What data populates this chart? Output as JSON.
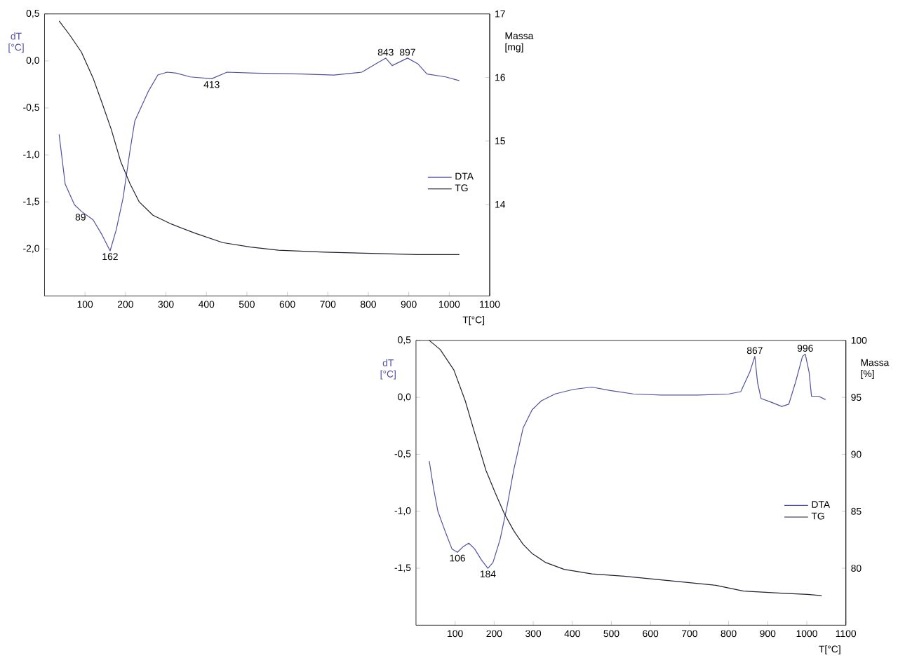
{
  "chart_data": [
    {
      "type": "line",
      "xlabel": "T[°C]",
      "ylabel": "dT [°C]",
      "y2label": "Massa [mg]",
      "legend": "right",
      "xlim": [
        0,
        1100
      ],
      "xticks": [
        100,
        200,
        300,
        400,
        500,
        600,
        700,
        800,
        900,
        1000,
        1100
      ],
      "ylim": [
        -2.5,
        0.5
      ],
      "yticks": [
        {
          "value": 0.5,
          "label": "0,5"
        },
        {
          "value": 0.0,
          "label": "0,0"
        },
        {
          "value": -0.5,
          "label": "-0,5"
        },
        {
          "value": -1.0,
          "label": "-1,0"
        },
        {
          "value": -1.5,
          "label": "-1,5"
        },
        {
          "value": -2.0,
          "label": "-2,0"
        }
      ],
      "y2lim": [
        12.56,
        17
      ],
      "y2ticks": [
        14,
        15,
        16,
        17
      ],
      "series": [
        {
          "name": "DTA",
          "color": "#5050a0",
          "x": [
            36,
            51,
            74,
            91,
            120,
            142,
            162,
            177,
            194,
            211,
            223,
            240,
            257,
            280,
            303,
            326,
            360,
            413,
            451,
            520,
            635,
            715,
            784,
            819,
            843,
            859,
            897,
            922,
            945,
            991,
            1025
          ],
          "values": [
            -0.78,
            -1.31,
            -1.53,
            -1.6,
            -1.69,
            -1.85,
            -2.02,
            -1.8,
            -1.46,
            -0.96,
            -0.64,
            -0.48,
            -0.32,
            -0.15,
            -0.12,
            -0.13,
            -0.17,
            -0.19,
            -0.12,
            -0.13,
            -0.14,
            -0.15,
            -0.12,
            -0.03,
            0.03,
            -0.05,
            0.03,
            -0.03,
            -0.14,
            -0.17,
            -0.21
          ]
        },
        {
          "name": "TG",
          "color": "#202030",
          "axis": "y2",
          "x": [
            36,
            62,
            91,
            120,
            142,
            165,
            188,
            211,
            234,
            268,
            314,
            371,
            440,
            509,
            578,
            692,
            807,
            922,
            1025
          ],
          "values": [
            16.89,
            16.67,
            16.4,
            15.99,
            15.6,
            15.18,
            14.68,
            14.33,
            14.04,
            13.83,
            13.69,
            13.55,
            13.4,
            13.33,
            13.28,
            13.25,
            13.23,
            13.21,
            13.21
          ]
        }
      ],
      "annotations": [
        {
          "text": "89",
          "x": 89,
          "y": -1.6
        },
        {
          "text": "162",
          "x": 162,
          "y": -2.02
        },
        {
          "text": "413",
          "x": 413,
          "y": -0.19
        },
        {
          "text": "843",
          "x": 843,
          "y": 0.03
        },
        {
          "text": "897",
          "x": 897,
          "y": 0.03
        }
      ]
    },
    {
      "type": "line",
      "xlabel": "T[°C]",
      "ylabel": "dT [°C]",
      "y2label": "Massa [%]",
      "legend": "right",
      "xlim": [
        0,
        1100
      ],
      "xticks": [
        100,
        200,
        300,
        400,
        500,
        600,
        700,
        800,
        900,
        1000,
        1100
      ],
      "ylim": [
        -2.0,
        0.5
      ],
      "yticks": [
        {
          "value": 0.5,
          "label": "0,5"
        },
        {
          "value": 0.0,
          "label": "0,0"
        },
        {
          "value": -0.5,
          "label": "-0,5"
        },
        {
          "value": -1.0,
          "label": "-1,0"
        },
        {
          "value": -1.5,
          "label": "-1,5"
        }
      ],
      "y2lim": [
        75,
        100
      ],
      "y2ticks": [
        80,
        85,
        90,
        95,
        100
      ],
      "series": [
        {
          "name": "DTA",
          "color": "#5050a0",
          "x": [
            34,
            45,
            56,
            74,
            92,
            106,
            121,
            135,
            150,
            168,
            184,
            197,
            215,
            233,
            250,
            274,
            297,
            321,
            356,
            403,
            450,
            497,
            556,
            627,
            721,
            801,
            831,
            854,
            867,
            874,
            883,
            907,
            936,
            954,
            971,
            989,
            996,
            1006,
            1012,
            1030,
            1048
          ],
          "values": [
            -0.56,
            -0.8,
            -1.0,
            -1.17,
            -1.33,
            -1.36,
            -1.31,
            -1.28,
            -1.33,
            -1.43,
            -1.5,
            -1.45,
            -1.25,
            -0.96,
            -0.64,
            -0.27,
            -0.11,
            -0.03,
            0.03,
            0.07,
            0.09,
            0.06,
            0.03,
            0.02,
            0.02,
            0.03,
            0.05,
            0.22,
            0.36,
            0.13,
            -0.01,
            -0.04,
            -0.08,
            -0.06,
            0.13,
            0.36,
            0.38,
            0.22,
            0.01,
            0.01,
            -0.02
          ]
        },
        {
          "name": "TG",
          "color": "#202030",
          "axis": "y2",
          "x": [
            34,
            62,
            97,
            126,
            150,
            179,
            203,
            226,
            250,
            274,
            297,
            332,
            379,
            450,
            532,
            591,
            650,
            767,
            838,
            943,
            1002,
            1038
          ],
          "values": [
            100.0,
            99.2,
            97.4,
            94.7,
            91.9,
            88.6,
            86.6,
            84.8,
            83.3,
            82.1,
            81.3,
            80.5,
            79.9,
            79.5,
            79.3,
            79.1,
            78.9,
            78.5,
            78.0,
            77.8,
            77.7,
            77.6
          ]
        }
      ],
      "annotations": [
        {
          "text": "106",
          "x": 106,
          "y": -1.36
        },
        {
          "text": "184",
          "x": 184,
          "y": -1.5
        },
        {
          "text": "867",
          "x": 867,
          "y": 0.36
        },
        {
          "text": "996",
          "x": 996,
          "y": 0.38
        }
      ]
    }
  ]
}
